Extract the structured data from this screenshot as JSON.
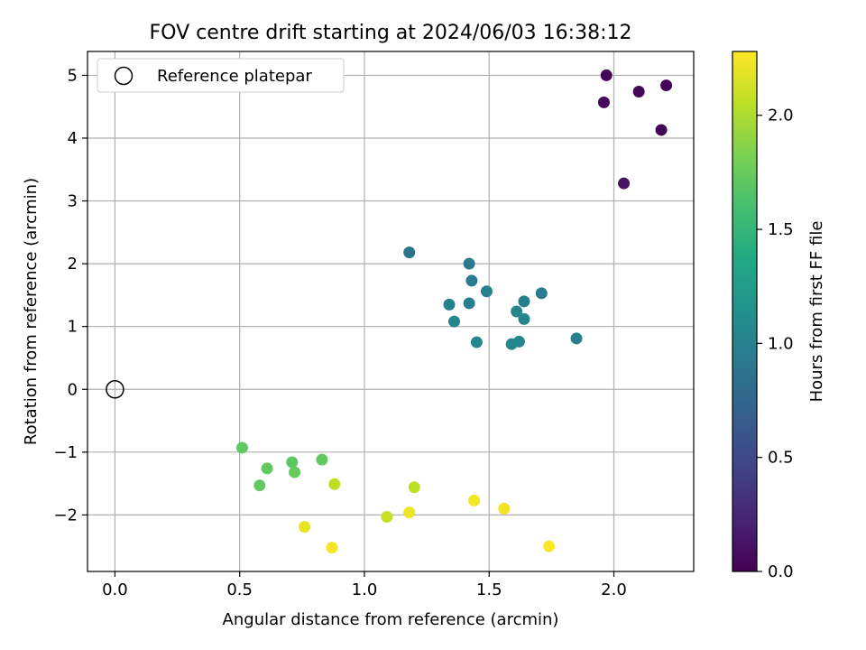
{
  "chart_data": {
    "type": "scatter",
    "title": "FOV centre drift starting at 2024/06/03 16:38:12",
    "xlabel": "Angular distance from reference (arcmin)",
    "ylabel": "Rotation from reference (arcmin)",
    "xlim": [
      -0.11,
      2.32
    ],
    "ylim": [
      -2.9,
      5.38
    ],
    "xticks": [
      0.0,
      0.5,
      1.0,
      1.5,
      2.0
    ],
    "xtick_labels": [
      "0.0",
      "0.5",
      "1.0",
      "1.5",
      "2.0"
    ],
    "yticks": [
      -2,
      -1,
      0,
      1,
      2,
      3,
      4,
      5
    ],
    "ytick_labels": [
      "−2",
      "−1",
      "0",
      "1",
      "2",
      "3",
      "4",
      "5"
    ],
    "grid": true,
    "legend": {
      "position": "top-left",
      "entries": [
        "Reference platepar"
      ]
    },
    "reference_point": {
      "x": 0.0,
      "y": 0.0
    },
    "colorbar": {
      "label": "Hours from first FF file",
      "range": [
        0.0,
        2.28
      ],
      "ticks": [
        0.0,
        0.5,
        1.0,
        1.5,
        2.0
      ],
      "tick_labels": [
        "0.0",
        "0.5",
        "1.0",
        "1.5",
        "2.0"
      ],
      "colormap": "viridis"
    },
    "points": [
      {
        "x": 1.97,
        "y": 5.0,
        "c": 0.02
      },
      {
        "x": 2.21,
        "y": 4.84,
        "c": 0.02
      },
      {
        "x": 2.1,
        "y": 4.74,
        "c": 0.04
      },
      {
        "x": 1.96,
        "y": 4.57,
        "c": 0.06
      },
      {
        "x": 2.19,
        "y": 4.13,
        "c": 0.03
      },
      {
        "x": 2.04,
        "y": 3.28,
        "c": 0.12
      },
      {
        "x": 1.18,
        "y": 2.18,
        "c": 0.88
      },
      {
        "x": 1.42,
        "y": 2.0,
        "c": 0.93
      },
      {
        "x": 1.43,
        "y": 1.73,
        "c": 0.95
      },
      {
        "x": 1.49,
        "y": 1.56,
        "c": 1.0
      },
      {
        "x": 1.71,
        "y": 1.53,
        "c": 0.95
      },
      {
        "x": 1.34,
        "y": 1.35,
        "c": 1.0
      },
      {
        "x": 1.42,
        "y": 1.37,
        "c": 0.98
      },
      {
        "x": 1.64,
        "y": 1.4,
        "c": 0.98
      },
      {
        "x": 1.61,
        "y": 1.24,
        "c": 1.02
      },
      {
        "x": 1.64,
        "y": 1.12,
        "c": 1.02
      },
      {
        "x": 1.36,
        "y": 1.08,
        "c": 1.03
      },
      {
        "x": 1.85,
        "y": 0.81,
        "c": 0.98
      },
      {
        "x": 1.45,
        "y": 0.75,
        "c": 1.05
      },
      {
        "x": 1.62,
        "y": 0.76,
        "c": 1.03
      },
      {
        "x": 1.59,
        "y": 0.72,
        "c": 1.05
      },
      {
        "x": 0.51,
        "y": -0.93,
        "c": 1.72
      },
      {
        "x": 0.83,
        "y": -1.12,
        "c": 1.72
      },
      {
        "x": 0.71,
        "y": -1.16,
        "c": 1.7
      },
      {
        "x": 0.61,
        "y": -1.26,
        "c": 1.72
      },
      {
        "x": 0.72,
        "y": -1.32,
        "c": 1.74
      },
      {
        "x": 0.58,
        "y": -1.53,
        "c": 1.72
      },
      {
        "x": 0.88,
        "y": -1.51,
        "c": 2.05
      },
      {
        "x": 1.2,
        "y": -1.56,
        "c": 2.05
      },
      {
        "x": 1.44,
        "y": -1.77,
        "c": 2.25
      },
      {
        "x": 1.56,
        "y": -1.9,
        "c": 2.23
      },
      {
        "x": 1.18,
        "y": -1.96,
        "c": 2.22
      },
      {
        "x": 1.09,
        "y": -2.03,
        "c": 2.08
      },
      {
        "x": 0.76,
        "y": -2.19,
        "c": 2.2
      },
      {
        "x": 0.87,
        "y": -2.52,
        "c": 2.25
      },
      {
        "x": 1.74,
        "y": -2.5,
        "c": 2.27
      }
    ]
  }
}
